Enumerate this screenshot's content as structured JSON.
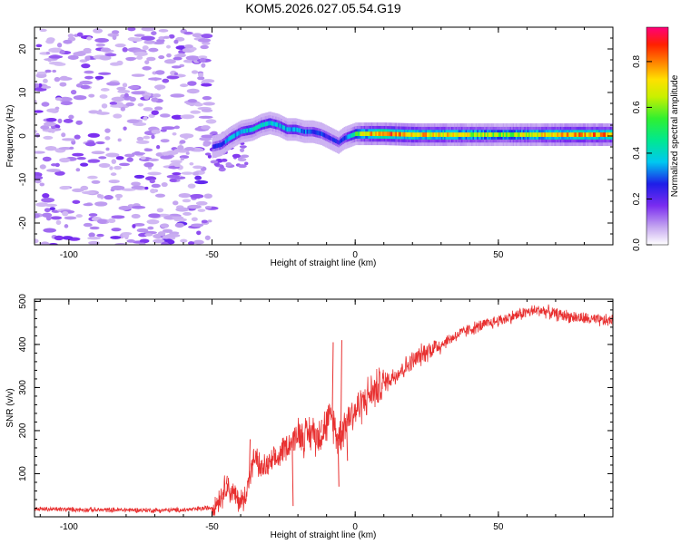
{
  "title": "KOM5.2026.027.05.54.G19",
  "colors": {
    "snr_line": "#e83030",
    "frame": "#000000"
  },
  "chart_data": [
    {
      "type": "heatmap",
      "name": "spectrogram",
      "xlabel": "Height of straight line (km)",
      "ylabel": "Frequency (Hz)",
      "xlim": [
        -112,
        90
      ],
      "ylim": [
        -25,
        25
      ],
      "xticks": [
        -100,
        -50,
        0,
        50
      ],
      "yticks": [
        -20,
        -10,
        0,
        10,
        20
      ],
      "xtick_labels": [
        "-100",
        "-50",
        "0",
        "50"
      ],
      "ytick_labels": [
        "-20",
        "-10",
        "0",
        "10",
        "20"
      ],
      "noise_region_km": [
        -112,
        -50
      ],
      "signal_ridge": {
        "x_km": [
          -50,
          -47,
          -44,
          -40,
          -36,
          -33,
          -30,
          -27,
          -24,
          -21,
          -18,
          -15,
          -12,
          -9,
          -6,
          -4,
          0,
          5,
          10,
          20,
          30,
          40,
          50,
          60,
          70,
          80,
          90
        ],
        "freq_hz": [
          -2.5,
          -2,
          -0.5,
          1,
          1.5,
          2.5,
          3,
          2.5,
          1.5,
          1.5,
          1,
          1,
          0.5,
          -0.5,
          -1.5,
          -0.5,
          0.5,
          0.5,
          0.5,
          0.3,
          0.3,
          0.3,
          0.3,
          0.3,
          0.3,
          0.3,
          0.3
        ],
        "amplitude": [
          0.25,
          0.3,
          0.35,
          0.38,
          0.4,
          0.42,
          0.4,
          0.38,
          0.38,
          0.36,
          0.33,
          0.3,
          0.28,
          0.26,
          0.25,
          0.3,
          0.55,
          0.8,
          0.85,
          0.8,
          0.75,
          0.7,
          0.62,
          0.7,
          0.78,
          0.82,
          0.8
        ]
      },
      "colorbar": {
        "label": "Normalized spectral amplitude",
        "range": [
          0,
          0.95
        ],
        "ticks": [
          0.0,
          0.2,
          0.4,
          0.6,
          0.8
        ],
        "tick_labels": [
          "0.0",
          "0.2",
          "0.4",
          "0.6",
          "0.8"
        ]
      }
    },
    {
      "type": "line",
      "name": "snr",
      "xlabel": "Height of straight line (km)",
      "ylabel": "SNR (v/v)",
      "xlim": [
        -112,
        90
      ],
      "ylim": [
        0,
        505
      ],
      "xticks": [
        -100,
        -50,
        0,
        50
      ],
      "yticks": [
        100,
        200,
        300,
        400,
        500
      ],
      "xtick_labels": [
        "-100",
        "-50",
        "0",
        "50"
      ],
      "ytick_labels": [
        "100",
        "200",
        "300",
        "400",
        "500"
      ],
      "series": [
        {
          "name": "SNR",
          "x": [
            -112,
            -100,
            -90,
            -80,
            -70,
            -60,
            -55,
            -50,
            -47,
            -45,
            -43,
            -41,
            -39,
            -37,
            -35,
            -33,
            -30,
            -27,
            -25,
            -22,
            -20,
            -17,
            -15,
            -13,
            -10,
            -8,
            -6,
            -4,
            -2,
            0,
            5,
            10,
            15,
            20,
            25,
            30,
            35,
            40,
            45,
            50,
            55,
            60,
            65,
            70,
            75,
            80,
            85,
            90
          ],
          "y": [
            18,
            17,
            16,
            16,
            15,
            16,
            18,
            22,
            45,
            75,
            55,
            40,
            35,
            90,
            140,
            110,
            120,
            135,
            160,
            175,
            195,
            185,
            200,
            185,
            215,
            230,
            180,
            210,
            235,
            245,
            285,
            310,
            335,
            360,
            385,
            400,
            420,
            435,
            445,
            455,
            465,
            475,
            480,
            470,
            465,
            460,
            455,
            455
          ]
        }
      ],
      "spikes": [
        {
          "x": -22,
          "y": 25
        },
        {
          "x": -12,
          "y": 225
        },
        {
          "x": -8,
          "y": 405
        },
        {
          "x": -6,
          "y": 70
        },
        {
          "x": -5,
          "y": 410
        },
        {
          "x": -3,
          "y": 130
        },
        {
          "x": -37,
          "y": 180
        },
        {
          "x": -45,
          "y": 95
        }
      ]
    }
  ]
}
